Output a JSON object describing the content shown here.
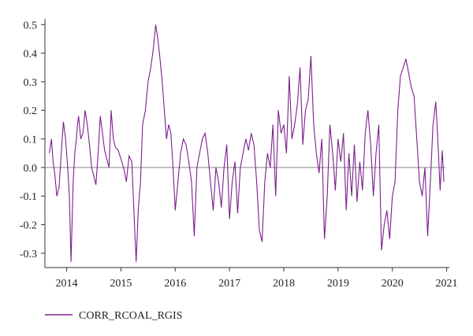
{
  "chart_data": {
    "type": "line",
    "title": "",
    "xlabel": "",
    "ylabel": "",
    "xlim": [
      2013.6,
      2021.05
    ],
    "ylim": [
      -0.35,
      0.52
    ],
    "x_ticks": [
      2014,
      2015,
      2016,
      2017,
      2018,
      2019,
      2020,
      2021
    ],
    "x_tick_labels": [
      "2014",
      "2015",
      "2016",
      "2017",
      "2018",
      "2019",
      "2020",
      "2021"
    ],
    "y_ticks": [
      -0.3,
      -0.2,
      -0.1,
      0.0,
      0.1,
      0.2,
      0.3,
      0.4,
      0.5
    ],
    "y_tick_labels": [
      "-0.3",
      "-0.2",
      "-0.1",
      "0.0",
      "0.1",
      "0.2",
      "0.3",
      "0.4",
      "0.5"
    ],
    "zero_line": true,
    "grid": false,
    "legend_position": "bottom-left",
    "series": [
      {
        "name": "CORR_RCOAL_RGIS",
        "color": "#7b1f8c",
        "x": [
          2013.68,
          2013.72,
          2013.75,
          2013.78,
          2013.82,
          2013.86,
          2013.9,
          2013.94,
          2013.98,
          2014.02,
          2014.05,
          2014.08,
          2014.12,
          2014.15,
          2014.18,
          2014.2,
          2014.22,
          2014.26,
          2014.3,
          2014.34,
          2014.38,
          2014.42,
          2014.46,
          2014.5,
          2014.54,
          2014.58,
          2014.62,
          2014.66,
          2014.7,
          2014.74,
          2014.78,
          2014.82,
          2014.86,
          2014.9,
          2014.95,
          2015.0,
          2015.05,
          2015.1,
          2015.15,
          2015.2,
          2015.25,
          2015.28,
          2015.32,
          2015.36,
          2015.4,
          2015.45,
          2015.5,
          2015.55,
          2015.6,
          2015.64,
          2015.68,
          2015.72,
          2015.76,
          2015.8,
          2015.84,
          2015.88,
          2015.92,
          2015.96,
          2016.0,
          2016.05,
          2016.1,
          2016.15,
          2016.2,
          2016.25,
          2016.3,
          2016.35,
          2016.4,
          2016.45,
          2016.5,
          2016.55,
          2016.6,
          2016.65,
          2016.7,
          2016.75,
          2016.8,
          2016.85,
          2016.9,
          2016.95,
          2017.0,
          2017.05,
          2017.1,
          2017.15,
          2017.2,
          2017.25,
          2017.3,
          2017.35,
          2017.4,
          2017.45,
          2017.5,
          2017.55,
          2017.6,
          2017.65,
          2017.7,
          2017.75,
          2017.8,
          2017.85,
          2017.9,
          2017.95,
          2018.0,
          2018.05,
          2018.1,
          2018.15,
          2018.2,
          2018.25,
          2018.3,
          2018.35,
          2018.4,
          2018.45,
          2018.5,
          2018.55,
          2018.6,
          2018.65,
          2018.7,
          2018.75,
          2018.8,
          2018.85,
          2018.9,
          2018.95,
          2019.0,
          2019.05,
          2019.1,
          2019.15,
          2019.2,
          2019.25,
          2019.3,
          2019.35,
          2019.4,
          2019.45,
          2019.5,
          2019.55,
          2019.6,
          2019.65,
          2019.7,
          2019.75,
          2019.8,
          2019.85,
          2019.9,
          2019.95,
          2020.0,
          2020.05,
          2020.1,
          2020.15,
          2020.2,
          2020.25,
          2020.3,
          2020.35,
          2020.4,
          2020.45,
          2020.5,
          2020.55,
          2020.6,
          2020.65,
          2020.7,
          2020.75,
          2020.8,
          2020.85,
          2020.88,
          2020.92,
          2020.95
        ],
        "values": [
          0.05,
          0.1,
          0.02,
          -0.02,
          -0.1,
          -0.07,
          0.05,
          0.16,
          0.1,
          0.0,
          -0.1,
          -0.33,
          -0.05,
          0.05,
          0.1,
          0.15,
          0.18,
          0.1,
          0.12,
          0.2,
          0.15,
          0.08,
          0.0,
          -0.03,
          -0.06,
          0.05,
          0.18,
          0.12,
          0.06,
          0.03,
          0.0,
          0.2,
          0.1,
          0.07,
          0.06,
          0.03,
          0.0,
          -0.05,
          0.04,
          0.02,
          -0.2,
          -0.33,
          -0.15,
          -0.05,
          0.15,
          0.2,
          0.3,
          0.35,
          0.42,
          0.5,
          0.45,
          0.38,
          0.3,
          0.2,
          0.1,
          0.15,
          0.12,
          0.0,
          -0.15,
          -0.05,
          0.05,
          0.1,
          0.08,
          0.02,
          -0.05,
          -0.24,
          0.0,
          0.05,
          0.1,
          0.12,
          0.05,
          -0.05,
          -0.15,
          0.0,
          -0.05,
          -0.14,
          0.0,
          0.08,
          -0.18,
          -0.05,
          0.02,
          -0.16,
          0.0,
          0.05,
          0.1,
          0.06,
          0.12,
          0.08,
          -0.05,
          -0.22,
          -0.26,
          -0.05,
          0.05,
          0.0,
          0.15,
          -0.1,
          0.2,
          0.12,
          0.15,
          0.05,
          0.32,
          0.1,
          0.15,
          0.22,
          0.35,
          0.08,
          0.2,
          0.24,
          0.39,
          0.15,
          0.05,
          -0.02,
          0.1,
          -0.25,
          -0.1,
          0.15,
          0.05,
          -0.08,
          0.1,
          0.02,
          0.12,
          -0.15,
          0.05,
          -0.1,
          0.08,
          -0.12,
          0.02,
          -0.08,
          0.12,
          0.2,
          0.08,
          -0.1,
          0.05,
          0.15,
          -0.29,
          -0.2,
          -0.15,
          -0.25,
          -0.1,
          -0.05,
          0.2,
          0.32,
          0.35,
          0.38,
          0.33,
          0.28,
          0.25,
          0.1,
          -0.05,
          -0.1,
          0.0,
          -0.24,
          -0.05,
          0.15,
          0.23,
          0.05,
          -0.08,
          0.06,
          -0.05
        ]
      }
    ]
  }
}
